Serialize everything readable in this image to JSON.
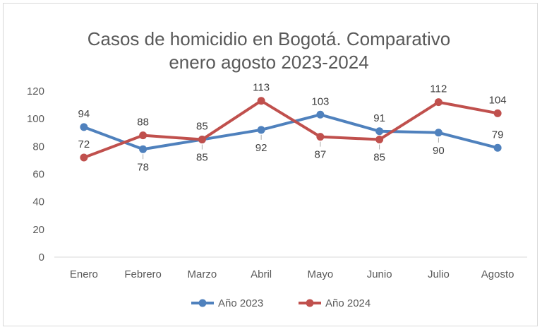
{
  "chart_data": {
    "type": "line",
    "title_lines": [
      "Casos de homicidio en Bogotá. Comparativo",
      "enero agosto 2023-2024"
    ],
    "categories": [
      "Enero",
      "Febrero",
      "Marzo",
      "Abril",
      "Mayo",
      "Junio",
      "Julio",
      "Agosto"
    ],
    "ylim": [
      0,
      120
    ],
    "yticks": [
      0,
      20,
      40,
      60,
      80,
      100,
      120
    ],
    "grid": false,
    "legend_position": "bottom",
    "series": [
      {
        "name": "Año 2023",
        "color": "#4f81bd",
        "values": [
          94,
          78,
          85,
          92,
          103,
          91,
          90,
          79
        ],
        "label_side": [
          "above",
          "below",
          "below",
          "below",
          "above",
          "above",
          "below",
          "above"
        ]
      },
      {
        "name": "Año 2024",
        "color": "#c0504d",
        "values": [
          72,
          88,
          85,
          113,
          87,
          85,
          112,
          104
        ],
        "label_side": [
          "above",
          "above",
          "above",
          "above",
          "below",
          "below",
          "above",
          "above"
        ]
      }
    ]
  }
}
